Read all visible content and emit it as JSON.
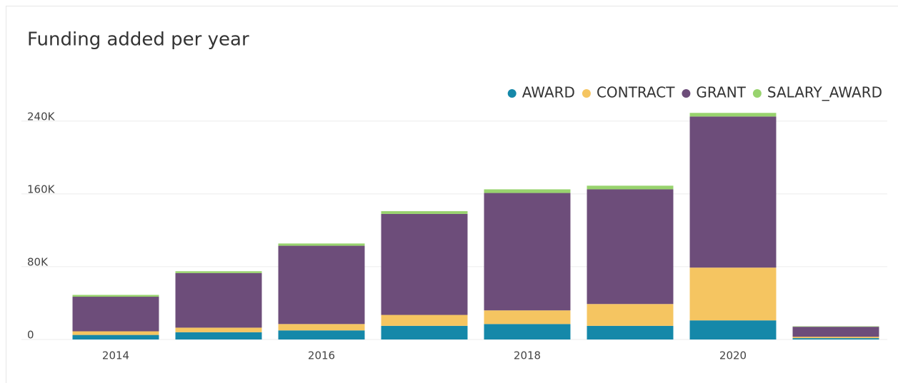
{
  "chart_data": {
    "type": "stacked_bar",
    "title": "Funding added per year",
    "x": [
      2014,
      2015,
      2016,
      2017,
      2018,
      2019,
      2020,
      2021
    ],
    "xlim": [
      2013.5,
      2021.5
    ],
    "xticks": [
      2014,
      2016,
      2018,
      2020
    ],
    "ylim": [
      0,
      250000
    ],
    "yticks": [
      0,
      {
        "value": 80000,
        "label": "80K"
      },
      {
        "value": 160000,
        "label": "160K"
      },
      {
        "value": 240000,
        "label": "240K"
      }
    ],
    "grid": true,
    "legend": "top-right",
    "series": [
      {
        "name": "AWARD",
        "color": "#1588a9",
        "values": [
          5000,
          8000,
          10000,
          15000,
          17000,
          15000,
          21000,
          1500
        ]
      },
      {
        "name": "CONTRACT",
        "color": "#f5c561",
        "values": [
          4000,
          5000,
          7000,
          12000,
          15000,
          24000,
          58000,
          1500
        ]
      },
      {
        "name": "GRANT",
        "color": "#6d4d7a",
        "values": [
          38000,
          60000,
          86000,
          111000,
          129000,
          126000,
          166000,
          11000
        ]
      },
      {
        "name": "SALARY_AWARD",
        "color": "#98d36e",
        "values": [
          2000,
          2000,
          2500,
          3000,
          4000,
          4000,
          4000,
          500
        ]
      }
    ]
  }
}
